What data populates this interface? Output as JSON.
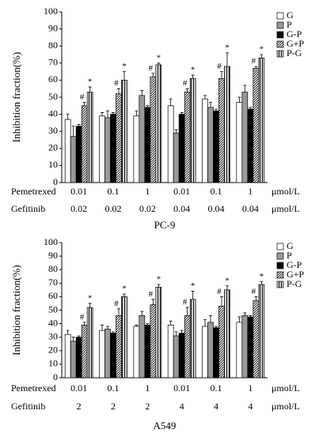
{
  "chart_data": [
    {
      "type": "bar",
      "ylabel": "Inhibition fraction(%)",
      "xlabel": "PC-9",
      "ylim": [
        0,
        100
      ],
      "yticks": [
        0,
        10,
        20,
        30,
        40,
        50,
        60,
        70,
        80,
        90,
        100
      ],
      "legend": "top-right",
      "category_rows": [
        {
          "name": "Pemetrexed",
          "labels": [
            "0.01",
            "0.1",
            "1",
            "0.01",
            "0.1",
            "1"
          ],
          "unit": "μmol/L"
        },
        {
          "name": "Gefitinib",
          "labels": [
            "0.02",
            "0.02",
            "0.02",
            "0.04",
            "0.04",
            "0.04"
          ],
          "unit": "μmol/L"
        }
      ],
      "series": [
        {
          "name": "G",
          "color": "#ffffff",
          "pattern": "none",
          "values": [
            37,
            39,
            39,
            45,
            49,
            47
          ],
          "errors": [
            3,
            2,
            3,
            4,
            2,
            3
          ]
        },
        {
          "name": "P",
          "color": "#999999",
          "pattern": "none",
          "values": [
            27,
            38,
            51,
            29,
            44,
            53
          ],
          "errors": [
            6,
            4,
            3,
            2,
            3,
            4
          ]
        },
        {
          "name": "G-P",
          "color": "#000000",
          "pattern": "none",
          "values": [
            33,
            40,
            44,
            40,
            42,
            43
          ],
          "errors": [
            1,
            1,
            1,
            1,
            1,
            1
          ]
        },
        {
          "name": "G+P",
          "color": "#ffffff",
          "pattern": "diagonal",
          "values": [
            45,
            52,
            62,
            53,
            61,
            67
          ],
          "errors": [
            2,
            3,
            2,
            2,
            4,
            1
          ],
          "annotations": [
            "#",
            "#",
            "#",
            "#",
            "#",
            "#"
          ]
        },
        {
          "name": "P-G",
          "color": "#d0d0d0",
          "pattern": "vertical",
          "values": [
            53,
            60,
            69,
            61,
            68,
            73
          ],
          "errors": [
            3,
            5,
            1,
            2,
            8,
            2
          ],
          "annotations": [
            "*",
            "*",
            "*",
            "*",
            "*",
            "*"
          ]
        }
      ]
    },
    {
      "type": "bar",
      "ylabel": "Inhibition fraction(%)",
      "xlabel": "A549",
      "ylim": [
        0,
        100
      ],
      "yticks": [
        0,
        10,
        20,
        30,
        40,
        50,
        60,
        70,
        80,
        90,
        100
      ],
      "legend": "top-right",
      "category_rows": [
        {
          "name": "Pemetrexed",
          "labels": [
            "0.01",
            "0.1",
            "1",
            "0.01",
            "0.1",
            "1"
          ],
          "unit": "μmol/L"
        },
        {
          "name": "Gefitinib",
          "labels": [
            "2",
            "2",
            "2",
            "4",
            "4",
            "4"
          ],
          "unit": "μmol/L"
        }
      ],
      "series": [
        {
          "name": "G",
          "color": "#ffffff",
          "pattern": "none",
          "values": [
            32,
            35,
            38,
            39,
            38,
            41
          ],
          "errors": [
            3,
            4,
            1,
            3,
            5,
            4
          ]
        },
        {
          "name": "P",
          "color": "#999999",
          "pattern": "none",
          "values": [
            27,
            36,
            46,
            31,
            41,
            46
          ],
          "errors": [
            3,
            2,
            3,
            3,
            5,
            2
          ]
        },
        {
          "name": "G-P",
          "color": "#000000",
          "pattern": "none",
          "values": [
            30,
            33,
            39,
            33,
            37,
            45
          ],
          "errors": [
            1,
            1,
            1,
            2,
            1,
            1
          ]
        },
        {
          "name": "G+P",
          "color": "#ffffff",
          "pattern": "diagonal",
          "values": [
            39,
            46,
            54,
            46,
            53,
            57
          ],
          "errors": [
            2,
            5,
            4,
            6,
            7,
            3
          ],
          "annotations": [
            "#",
            "#",
            "#",
            "#",
            "#",
            "#"
          ]
        },
        {
          "name": "P-G",
          "color": "#d0d0d0",
          "pattern": "vertical",
          "values": [
            52,
            60,
            67,
            58,
            65,
            69
          ],
          "errors": [
            3,
            2,
            2,
            6,
            3,
            2
          ],
          "annotations": [
            "*",
            "*",
            "*",
            "*",
            "*",
            "*"
          ]
        }
      ]
    }
  ]
}
